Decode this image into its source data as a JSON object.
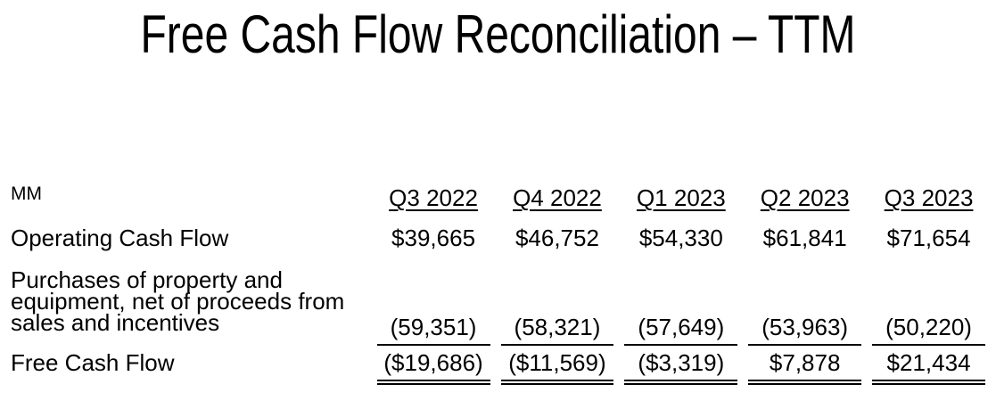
{
  "title": "Free Cash Flow Reconciliation – TTM",
  "table": {
    "unit_label": "MM",
    "columns": [
      "Q3 2022",
      "Q4 2022",
      "Q1 2023",
      "Q2 2023",
      "Q3 2023"
    ],
    "rows": [
      {
        "label": "Operating Cash Flow",
        "values": [
          "$39,665",
          "$46,752",
          "$54,330",
          "$61,841",
          "$71,654"
        ]
      },
      {
        "label": "Purchases of property and equipment, net of proceeds from sales and incentives",
        "values": [
          "(59,351)",
          "(58,321)",
          "(57,649)",
          "(53,963)",
          "(50,220)"
        ]
      },
      {
        "label": "Free Cash Flow",
        "values": [
          "($19,686)",
          "($11,569)",
          "($3,319)",
          "$7,878",
          "$21,434"
        ]
      }
    ]
  },
  "colors": {
    "text": "#000000",
    "background": "#ffffff"
  },
  "chart_data": {
    "type": "table",
    "title": "Free Cash Flow Reconciliation – TTM",
    "unit": "MM",
    "categories": [
      "Q3 2022",
      "Q4 2022",
      "Q1 2023",
      "Q2 2023",
      "Q3 2023"
    ],
    "series": [
      {
        "name": "Operating Cash Flow",
        "values": [
          39665,
          46752,
          54330,
          61841,
          71654
        ]
      },
      {
        "name": "Purchases of property and equipment, net of proceeds from sales and incentives",
        "values": [
          -59351,
          -58321,
          -57649,
          -53963,
          -50220
        ]
      },
      {
        "name": "Free Cash Flow",
        "values": [
          -19686,
          -11569,
          -3319,
          7878,
          21434
        ]
      }
    ]
  }
}
